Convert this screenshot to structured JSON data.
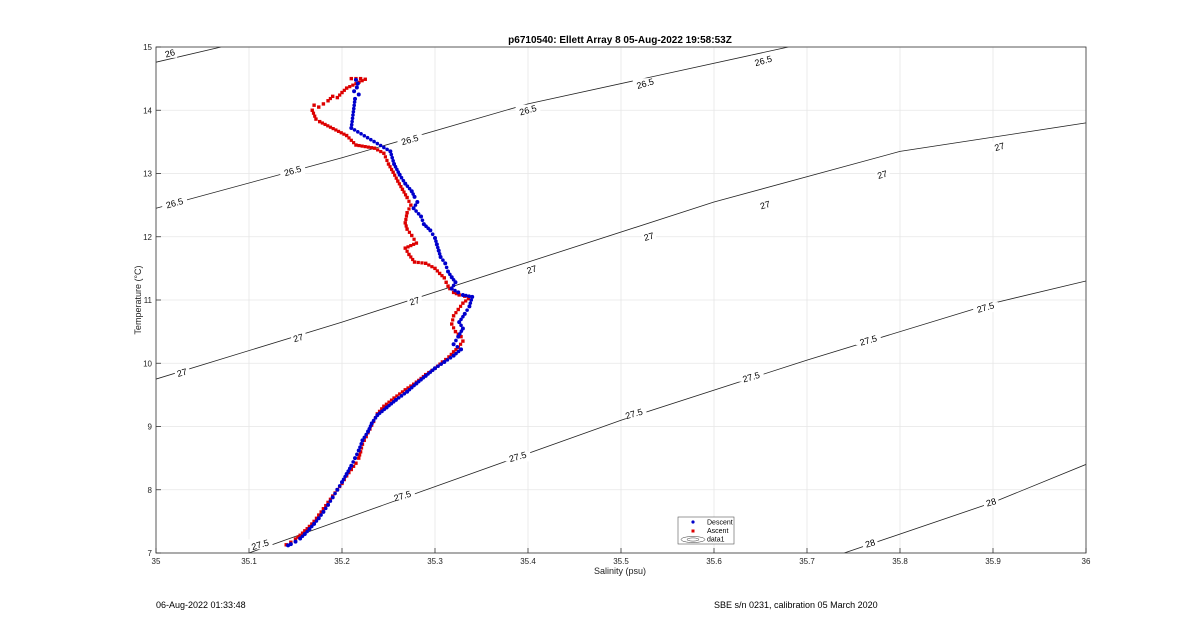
{
  "chart_data": {
    "type": "scatter",
    "title": "p6710540: Ellett Array 8 05-Aug-2022 19:58:53Z",
    "xlabel": "Salinity (psu)",
    "ylabel": "Temperature (°C)",
    "xlim": [
      35,
      36
    ],
    "ylim": [
      7,
      15
    ],
    "xticks": [
      "35",
      "35.1",
      "35.2",
      "35.3",
      "35.4",
      "35.5",
      "35.6",
      "35.7",
      "35.8",
      "35.9",
      "36"
    ],
    "yticks": [
      "7",
      "8",
      "9",
      "10",
      "11",
      "12",
      "13",
      "14",
      "15"
    ],
    "grid": true,
    "legend_position": "bottom-center",
    "legend": [
      "Descent",
      "Ascent",
      "data1"
    ],
    "density_contours": [
      {
        "level": "26",
        "points": [
          [
            35.0,
            14.76
          ],
          [
            35.07,
            15.0
          ]
        ]
      },
      {
        "level": "26.5",
        "points": [
          [
            35.0,
            12.45
          ],
          [
            35.2,
            13.25
          ],
          [
            35.4,
            14.1
          ],
          [
            35.68,
            15.0
          ]
        ]
      },
      {
        "level": "27",
        "points": [
          [
            35.0,
            9.75
          ],
          [
            35.2,
            10.65
          ],
          [
            35.4,
            11.6
          ],
          [
            35.6,
            12.55
          ],
          [
            35.8,
            13.35
          ],
          [
            36.0,
            13.8
          ]
        ]
      },
      {
        "level": "27.5",
        "points": [
          [
            35.1,
            7.0
          ],
          [
            35.3,
            8.05
          ],
          [
            35.5,
            9.1
          ],
          [
            35.7,
            10.05
          ],
          [
            35.9,
            10.95
          ],
          [
            36.0,
            11.3
          ]
        ]
      },
      {
        "level": "28",
        "points": [
          [
            35.74,
            7.0
          ],
          [
            35.9,
            7.8
          ],
          [
            36.0,
            8.4
          ]
        ]
      }
    ],
    "contour_labels": [
      {
        "text": "26",
        "x": 35.015,
        "y": 14.9
      },
      {
        "text": "26.5",
        "x": 35.02,
        "y": 12.53
      },
      {
        "text": "26.5",
        "x": 35.147,
        "y": 13.04
      },
      {
        "text": "26.5",
        "x": 35.273,
        "y": 13.53
      },
      {
        "text": "26.5",
        "x": 35.4,
        "y": 14.0
      },
      {
        "text": "26.5",
        "x": 35.526,
        "y": 14.42
      },
      {
        "text": "26.5",
        "x": 35.653,
        "y": 14.78
      },
      {
        "text": "27",
        "x": 35.028,
        "y": 9.85
      },
      {
        "text": "27",
        "x": 35.153,
        "y": 10.4
      },
      {
        "text": "27",
        "x": 35.278,
        "y": 10.98
      },
      {
        "text": "27",
        "x": 35.404,
        "y": 11.48
      },
      {
        "text": "27",
        "x": 35.53,
        "y": 12.0
      },
      {
        "text": "27",
        "x": 35.655,
        "y": 12.5
      },
      {
        "text": "27",
        "x": 35.781,
        "y": 12.98
      },
      {
        "text": "27",
        "x": 35.907,
        "y": 13.42
      },
      {
        "text": "27.5",
        "x": 35.112,
        "y": 7.13
      },
      {
        "text": "27.5",
        "x": 35.265,
        "y": 7.9
      },
      {
        "text": "27.5",
        "x": 35.389,
        "y": 8.52
      },
      {
        "text": "27.5",
        "x": 35.514,
        "y": 9.2
      },
      {
        "text": "27.5",
        "x": 35.64,
        "y": 9.78
      },
      {
        "text": "27.5",
        "x": 35.766,
        "y": 10.36
      },
      {
        "text": "27.5",
        "x": 35.892,
        "y": 10.88
      },
      {
        "text": "28",
        "x": 35.768,
        "y": 7.15
      },
      {
        "text": "28",
        "x": 35.898,
        "y": 7.8
      }
    ],
    "series": [
      {
        "name": "Descent",
        "color": "#0000cc",
        "x": [
          35.215,
          35.217,
          35.216,
          35.213,
          35.218,
          35.214,
          35.21,
          35.252,
          35.256,
          35.262,
          35.268,
          35.275,
          35.278,
          35.281,
          35.277,
          35.285,
          35.288,
          35.295,
          35.3,
          35.302,
          35.304,
          35.306,
          35.311,
          35.314,
          35.318,
          35.322,
          35.318,
          35.325,
          35.33,
          35.34,
          35.337,
          35.332,
          35.326,
          35.33,
          35.325,
          35.32,
          35.328,
          35.32,
          35.31,
          35.3,
          35.29,
          35.28,
          35.27,
          35.258,
          35.248,
          35.238,
          35.232,
          35.228,
          35.222,
          35.218,
          35.214,
          35.21,
          35.205,
          35.2,
          35.195,
          35.19,
          35.185,
          35.18,
          35.175,
          35.17,
          35.165,
          35.16,
          35.155,
          35.15,
          35.145,
          35.142
        ],
        "y": [
          14.48,
          14.42,
          14.36,
          14.3,
          14.25,
          14.18,
          13.72,
          13.35,
          13.15,
          12.98,
          12.84,
          12.72,
          12.63,
          12.55,
          12.45,
          12.32,
          12.2,
          12.1,
          11.98,
          11.88,
          11.78,
          11.68,
          11.58,
          11.45,
          11.36,
          11.28,
          11.18,
          11.12,
          11.08,
          11.05,
          10.9,
          10.78,
          10.65,
          10.55,
          10.42,
          10.3,
          10.22,
          10.12,
          10.02,
          9.92,
          9.8,
          9.68,
          9.55,
          9.42,
          9.3,
          9.18,
          9.05,
          8.92,
          8.78,
          8.62,
          8.5,
          8.38,
          8.25,
          8.12,
          8.0,
          7.88,
          7.76,
          7.65,
          7.55,
          7.46,
          7.38,
          7.3,
          7.23,
          7.18,
          7.14,
          7.12
        ]
      },
      {
        "name": "Ascent",
        "color": "#dd0000",
        "x": [
          35.21,
          35.215,
          35.22,
          35.225,
          35.205,
          35.2,
          35.195,
          35.19,
          35.185,
          35.18,
          35.175,
          35.17,
          35.168,
          35.172,
          35.176,
          35.205,
          35.215,
          35.235,
          35.245,
          35.25,
          35.255,
          35.26,
          35.265,
          35.27,
          35.274,
          35.27,
          35.268,
          35.27,
          35.275,
          35.28,
          35.268,
          35.272,
          35.278,
          35.29,
          35.3,
          35.305,
          35.31,
          35.312,
          35.314,
          35.316,
          35.32,
          35.326,
          35.332,
          35.336,
          35.33,
          35.325,
          35.32,
          35.318,
          35.322,
          35.328,
          35.33,
          35.325,
          35.32,
          35.315,
          35.308,
          35.3,
          35.29,
          35.28,
          35.268,
          35.256,
          35.245,
          35.238,
          35.234,
          35.23,
          35.226,
          35.222,
          35.22,
          35.218,
          35.215,
          35.21,
          35.205,
          35.2,
          35.195,
          35.19,
          35.185,
          35.18,
          35.175,
          35.17,
          35.165,
          35.16,
          35.155,
          35.15,
          35.145,
          35.14
        ],
        "y": [
          14.5,
          14.5,
          14.5,
          14.49,
          14.35,
          14.28,
          14.2,
          14.22,
          14.15,
          14.1,
          14.05,
          14.08,
          14.0,
          13.86,
          13.82,
          13.6,
          13.45,
          13.4,
          13.32,
          13.15,
          13.02,
          12.88,
          12.75,
          12.62,
          12.5,
          12.38,
          12.22,
          12.12,
          12.02,
          11.9,
          11.82,
          11.72,
          11.6,
          11.58,
          11.5,
          11.42,
          11.35,
          11.28,
          11.22,
          11.18,
          11.12,
          11.08,
          11.06,
          11.02,
          10.95,
          10.85,
          10.75,
          10.62,
          10.5,
          10.42,
          10.35,
          10.25,
          10.18,
          10.1,
          10.02,
          9.92,
          9.82,
          9.7,
          9.58,
          9.45,
          9.32,
          9.2,
          9.08,
          8.96,
          8.84,
          8.72,
          8.6,
          8.5,
          8.42,
          8.32,
          8.22,
          8.1,
          8.0,
          7.9,
          7.8,
          7.7,
          7.6,
          7.5,
          7.42,
          7.35,
          7.28,
          7.22,
          7.17,
          7.13
        ]
      }
    ]
  },
  "footer": {
    "left": "06-Aug-2022 01:33:48",
    "right": "SBE s/n 0231, calibration 05 March 2020"
  }
}
